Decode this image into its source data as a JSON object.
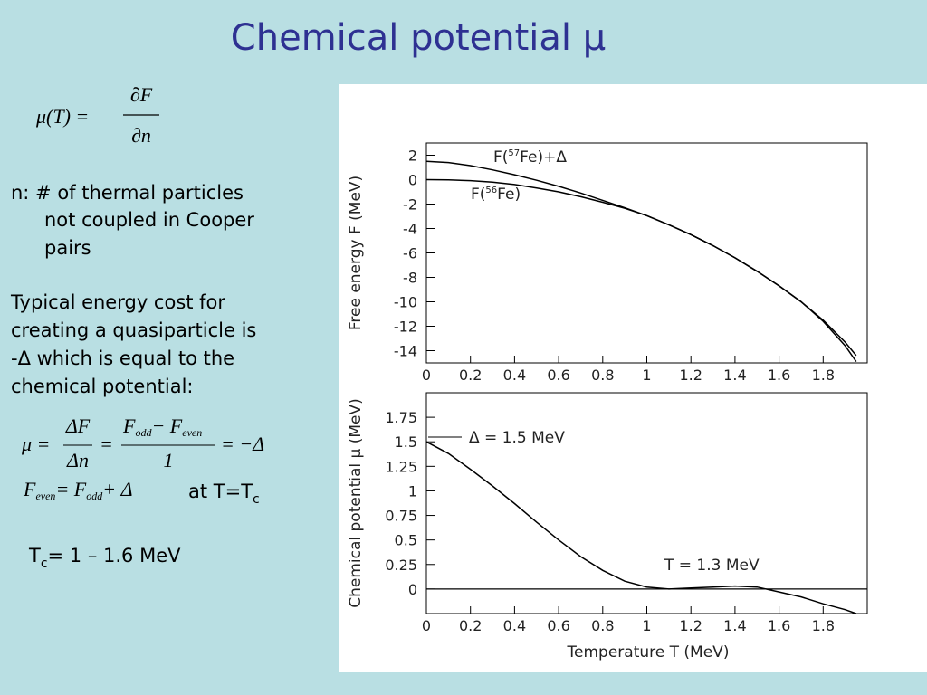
{
  "title": "Chemical potential μ",
  "formula1": {
    "lhs": "μ(T) =",
    "num": "∂F",
    "den": "∂n"
  },
  "definition": [
    "n:  # of thermal particles",
    "not coupled in Cooper",
    "pairs"
  ],
  "paragraph": [
    "Typical energy cost for",
    "creating a quasiparticle is",
    "-Δ which is equal to the",
    "chemical potential:"
  ],
  "formula2": {
    "lhs": "μ =",
    "num1": "ΔF",
    "den1": "Δn",
    "eq1": "=",
    "num2a": "F",
    "num2b": "odd",
    "num2c": "− F",
    "num2d": "even",
    "den2": "1",
    "rhs": "= −Δ"
  },
  "formula3": {
    "a": "F",
    "b": "even",
    "c": "= F",
    "d": "odd",
    "e": "+ Δ"
  },
  "condition": {
    "text": "at T=T",
    "sub": "c"
  },
  "range": {
    "text": "T",
    "sub": "c",
    "rest": "= 1 – 1.6 MeV"
  },
  "chart_data": [
    {
      "type": "line",
      "y_label": "Free energy F (MeV)",
      "x": [
        0,
        0.1,
        0.2,
        0.3,
        0.4,
        0.5,
        0.6,
        0.7,
        0.8,
        0.9,
        1.0,
        1.1,
        1.2,
        1.3,
        1.4,
        1.5,
        1.6,
        1.7,
        1.8,
        1.9,
        1.95
      ],
      "series": [
        {
          "name": "F(57Fe)+Δ",
          "color": "#000000",
          "values": [
            1.5,
            1.4,
            1.15,
            0.8,
            0.4,
            -0.05,
            -0.55,
            -1.1,
            -1.7,
            -2.3,
            -2.95,
            -3.7,
            -4.5,
            -5.4,
            -6.4,
            -7.5,
            -8.7,
            -10.0,
            -11.5,
            -13.3,
            -14.4
          ]
        },
        {
          "name": "F(56Fe)",
          "color": "#000000",
          "values": [
            0,
            -0.02,
            -0.08,
            -0.2,
            -0.4,
            -0.68,
            -1.0,
            -1.4,
            -1.85,
            -2.35,
            -2.95,
            -3.7,
            -4.5,
            -5.4,
            -6.4,
            -7.5,
            -8.7,
            -10.0,
            -11.6,
            -13.6,
            -14.9
          ]
        }
      ],
      "annotations": [
        {
          "parts": [
            "F(",
            "57",
            "Fe)+Δ"
          ]
        },
        {
          "parts": [
            "F(",
            "56",
            "Fe)"
          ]
        }
      ],
      "xlim": [
        0,
        2
      ],
      "xticks": [
        0,
        0.2,
        0.4,
        0.6,
        0.8,
        1,
        1.2,
        1.4,
        1.6,
        1.8
      ],
      "ylim": [
        -15,
        3
      ],
      "yticks": [
        -14,
        -12,
        -10,
        -8,
        -6,
        -4,
        -2,
        0,
        2
      ]
    },
    {
      "type": "line",
      "x_label": "Temperature T (MeV)",
      "y_label": "Chemical potential μ (MeV)",
      "x": [
        0,
        0.1,
        0.2,
        0.3,
        0.4,
        0.5,
        0.6,
        0.7,
        0.8,
        0.9,
        1.0,
        1.1,
        1.2,
        1.3,
        1.4,
        1.5,
        1.6,
        1.7,
        1.8,
        1.9,
        1.95
      ],
      "series": [
        {
          "name": "μ",
          "color": "#000000",
          "values": [
            1.5,
            1.38,
            1.22,
            1.05,
            0.87,
            0.68,
            0.5,
            0.33,
            0.19,
            0.08,
            0.02,
            0.0,
            0.01,
            0.02,
            0.03,
            0.02,
            -0.03,
            -0.08,
            -0.15,
            -0.21,
            -0.25
          ]
        }
      ],
      "annotations": [
        {
          "parts": [
            "Δ = 1.5 MeV"
          ]
        },
        {
          "parts": [
            "T = 1.3 MeV"
          ]
        }
      ],
      "hline": 0,
      "xlim": [
        0,
        2
      ],
      "xticks": [
        0,
        0.2,
        0.4,
        0.6,
        0.8,
        1,
        1.2,
        1.4,
        1.6,
        1.8
      ],
      "ylim": [
        -0.25,
        2
      ],
      "yticks": [
        0,
        0.25,
        0.5,
        0.75,
        1,
        1.25,
        1.5,
        1.75
      ]
    }
  ]
}
